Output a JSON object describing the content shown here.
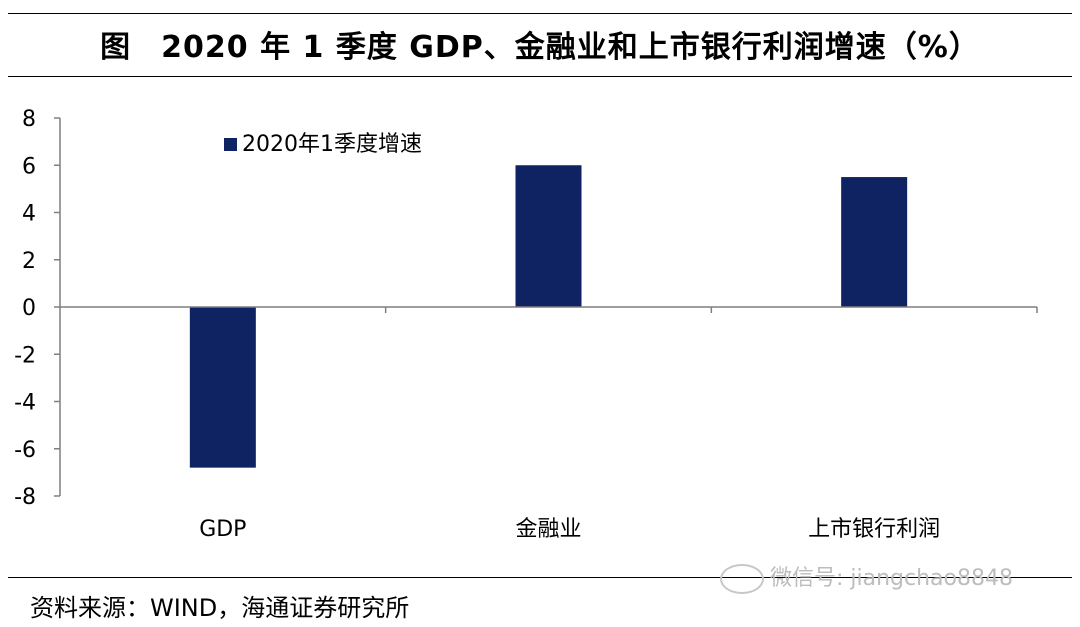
{
  "figure": {
    "label": "图",
    "title": "2020 年 1 季度 GDP、金融业和上市银行利润增速（%）"
  },
  "chart_data": {
    "type": "bar",
    "categories": [
      "GDP",
      "金融业",
      "上市银行利润"
    ],
    "series": [
      {
        "name": "2020年1季度增速",
        "values": [
          -6.8,
          6.0,
          5.5
        ],
        "color": "#0f2262"
      }
    ],
    "ylim": [
      -8,
      8
    ],
    "yticks": [
      8,
      6,
      4,
      2,
      0,
      -2,
      -4,
      -6,
      -8
    ],
    "xlabel": "",
    "ylabel": "",
    "legend_position": "top-left",
    "grid": false
  },
  "source": "资料来源：WIND，海通证券研究所",
  "watermark": "微信号: jiangchao8848"
}
